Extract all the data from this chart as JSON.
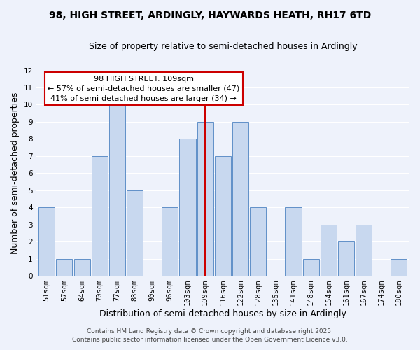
{
  "title_line1": "98, HIGH STREET, ARDINGLY, HAYWARDS HEATH, RH17 6TD",
  "title_line2": "Size of property relative to semi-detached houses in Ardingly",
  "xlabel": "Distribution of semi-detached houses by size in Ardingly",
  "ylabel": "Number of semi-detached properties",
  "bin_labels": [
    "51sqm",
    "57sqm",
    "64sqm",
    "70sqm",
    "77sqm",
    "83sqm",
    "90sqm",
    "96sqm",
    "103sqm",
    "109sqm",
    "116sqm",
    "122sqm",
    "128sqm",
    "135sqm",
    "141sqm",
    "148sqm",
    "154sqm",
    "161sqm",
    "167sqm",
    "174sqm",
    "180sqm"
  ],
  "bin_values": [
    4,
    1,
    1,
    7,
    10,
    5,
    0,
    4,
    8,
    9,
    7,
    9,
    4,
    0,
    4,
    1,
    3,
    2,
    3,
    0,
    1
  ],
  "bar_color": "#c8d8ef",
  "bar_edge_color": "#6090c8",
  "highlight_bin_index": 9,
  "highlight_line_color": "#cc0000",
  "ylim_max": 12,
  "yticks": [
    0,
    1,
    2,
    3,
    4,
    5,
    6,
    7,
    8,
    9,
    10,
    11,
    12
  ],
  "annotation_title": "98 HIGH STREET: 109sqm",
  "annotation_line1": "← 57% of semi-detached houses are smaller (47)",
  "annotation_line2": "41% of semi-detached houses are larger (34) →",
  "annotation_box_color": "#cc0000",
  "footer_line1": "Contains HM Land Registry data © Crown copyright and database right 2025.",
  "footer_line2": "Contains public sector information licensed under the Open Government Licence v3.0.",
  "background_color": "#eef2fb",
  "grid_color": "#ffffff",
  "title_fontsize": 10,
  "subtitle_fontsize": 9,
  "axis_label_fontsize": 9,
  "tick_fontsize": 7.5,
  "annotation_fontsize": 8,
  "footer_fontsize": 6.5
}
